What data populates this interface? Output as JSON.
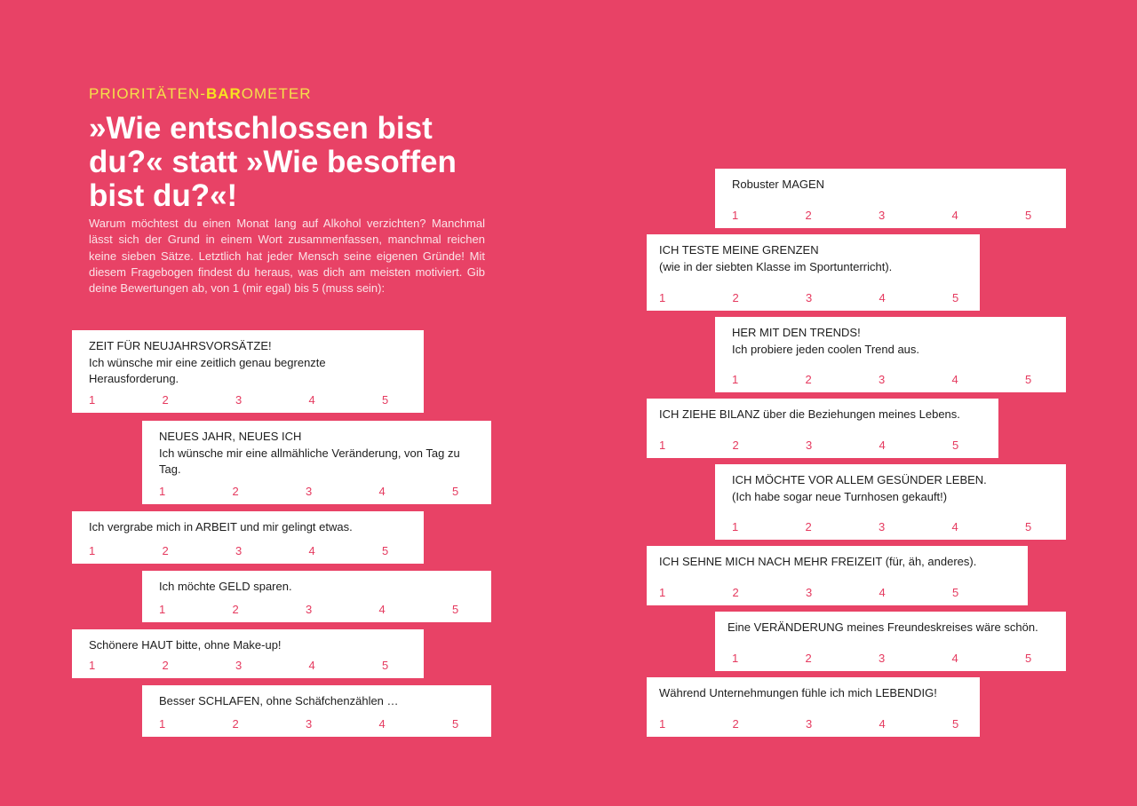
{
  "kicker": {
    "pre": "PRIORITÄTEN-",
    "bold": "BAR",
    "post": "OMETER"
  },
  "headline": "»Wie entschlossen bist du?« statt »Wie besoffen bist du?«!",
  "intro": "Warum möchtest du einen Monat lang auf Alkohol verzichten? Manchmal lässt sich der Grund in einem Wort zusammenfassen, manchmal reichen keine sieben Sätze. Letztlich hat jeder Mensch seine eigenen Gründe! Mit diesem Fragebogen findest du heraus, was dich am meisten motiviert. Gib deine Bewertungen ab, von 1 (mir egal) bis 5 (muss sein):",
  "scale": [
    "1",
    "2",
    "3",
    "4",
    "5"
  ],
  "left_cards": [
    {
      "line1": "ZEIT FÜR NEUJAHRSVORSÄTZE!",
      "line2": "Ich wünsche mir eine zeitlich genau begrenzte Herausforderung."
    },
    {
      "line1": "NEUES JAHR, NEUES ICH",
      "line2": "Ich wünsche mir eine allmähliche Veränderung, von Tag zu Tag."
    },
    {
      "line1": "Ich vergrabe mich in ARBEIT und mir gelingt etwas.",
      "line2": ""
    },
    {
      "line1": "Ich möchte GELD sparen.",
      "line2": ""
    },
    {
      "line1": "Schönere HAUT bitte, ohne Make-up!",
      "line2": ""
    },
    {
      "line1": "Besser SCHLAFEN, ohne Schäfchenzählen …",
      "line2": ""
    }
  ],
  "right_cards": [
    {
      "line1": "Robuster MAGEN",
      "line2": ""
    },
    {
      "line1": "ICH TESTE MEINE GRENZEN",
      "line2": "(wie in der siebten Klasse im Sportunterricht)."
    },
    {
      "line1": "HER MIT DEN TRENDS!",
      "line2": "Ich probiere jeden coolen Trend aus."
    },
    {
      "line1": "ICH ZIEHE BILANZ über die Beziehungen meines Lebens.",
      "line2": ""
    },
    {
      "line1": "ICH MÖCHTE VOR ALLEM GESÜNDER LEBEN.",
      "line2": "(Ich habe sogar neue Turnhosen gekauft!)"
    },
    {
      "line1": "ICH SEHNE MICH NACH MEHR FREIZEIT (für, äh, anderes).",
      "line2": ""
    },
    {
      "line1": "Eine VERÄNDERUNG meines Freundeskreises wäre schön.",
      "line2": ""
    },
    {
      "line1": "Während Unternehmungen fühle ich mich LEBENDIG!",
      "line2": ""
    }
  ]
}
